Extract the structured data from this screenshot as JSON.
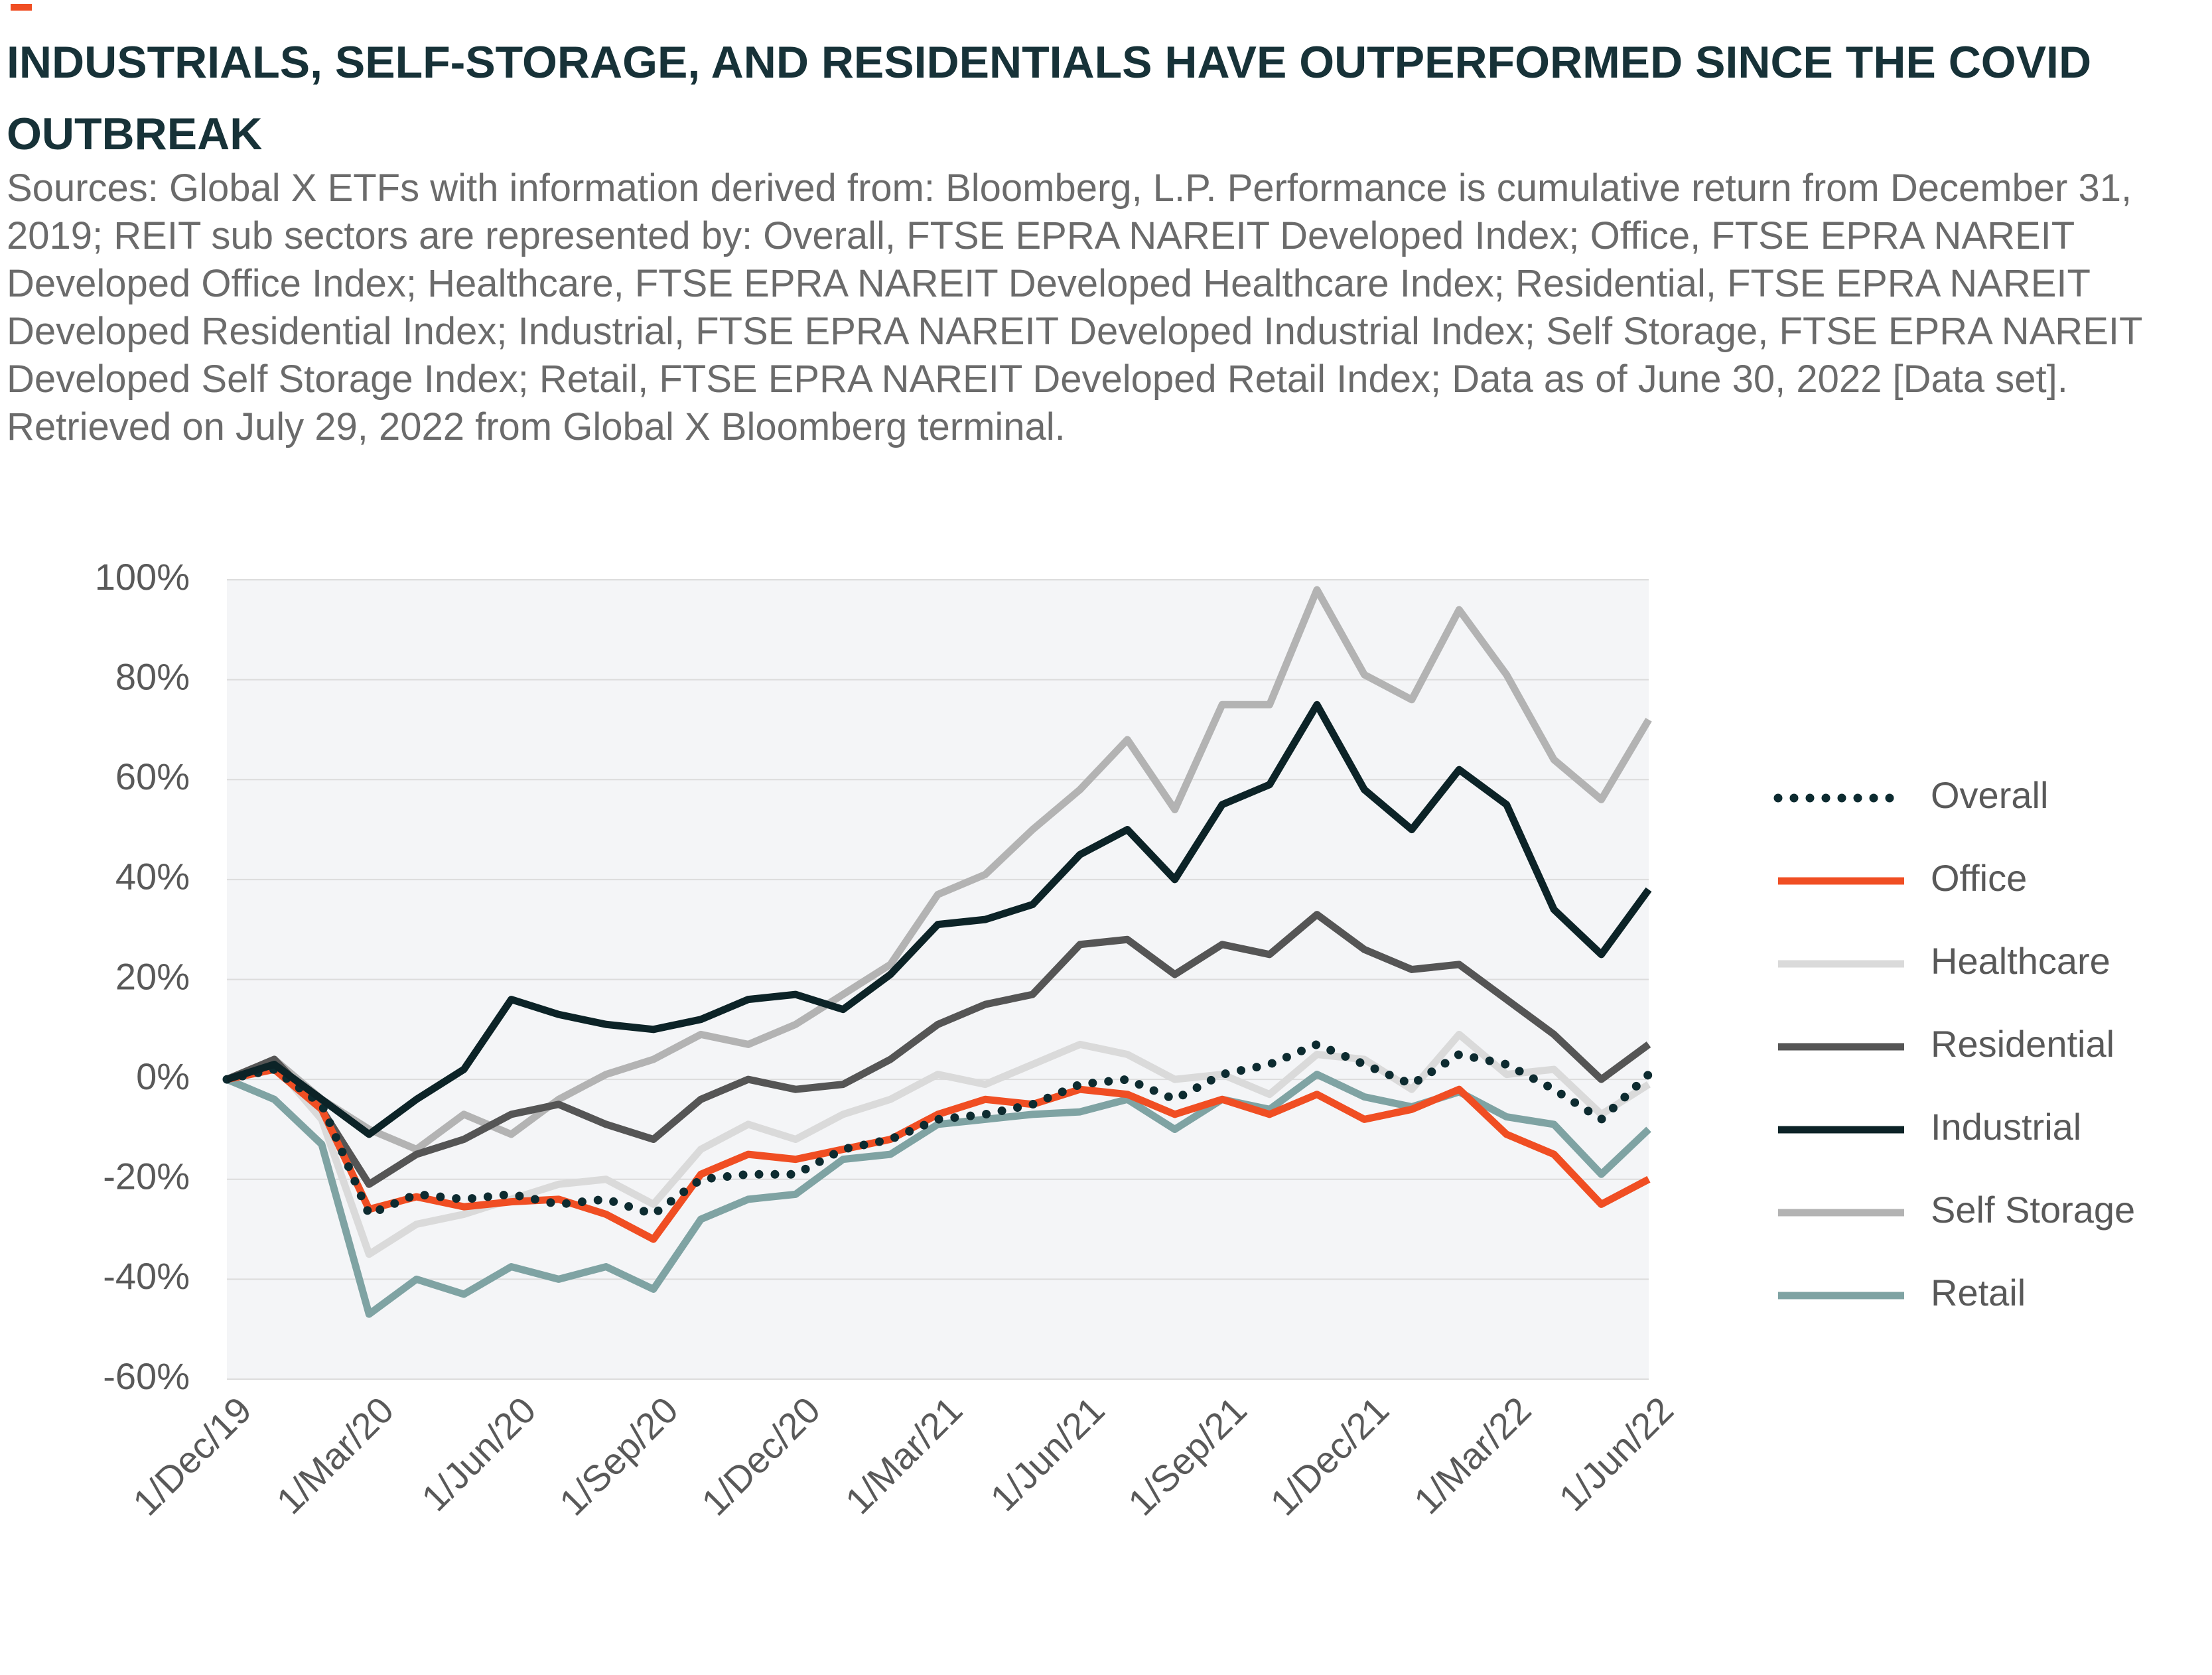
{
  "chart_data": {
    "type": "line",
    "title": "INDUSTRIALS, SELF-STORAGE, AND RESIDENTIALS HAVE OUTPERFORMED SINCE THE COVID OUTBREAK",
    "subtitle": "Sources: Global X ETFs with information derived from: Bloomberg, L.P. Performance is cumulative return from December 31, 2019; REIT sub sectors are represented by: Overall, FTSE EPRA NAREIT Developed Index; Office, FTSE EPRA NAREIT Developed Office Index; Healthcare, FTSE EPRA NAREIT Developed Healthcare Index; Residential, FTSE EPRA NAREIT Developed Residential Index; Industrial, FTSE EPRA NAREIT Developed Industrial Index; Self Storage, FTSE EPRA NAREIT Developed Self Storage Index; Retail, FTSE EPRA NAREIT Developed Retail Index; Data as of June 30, 2022 [Data set]. Retrieved on July 29, 2022 from Global X Bloomberg terminal.",
    "categories": [
      "1/Dec/19",
      null,
      null,
      "1/Mar/20",
      null,
      null,
      "1/Jun/20",
      null,
      null,
      "1/Sep/20",
      null,
      null,
      "1/Dec/20",
      null,
      null,
      "1/Mar/21",
      null,
      null,
      "1/Jun/21",
      null,
      null,
      "1/Sep/21",
      null,
      null,
      "1/Dec/21",
      null,
      null,
      "1/Mar/22",
      null,
      null,
      "1/Jun/22"
    ],
    "series": [
      {
        "name": "Overall",
        "color": "#0d2b30",
        "line_style": "dotted",
        "values": [
          0,
          2,
          -5,
          -27,
          -23,
          -24,
          -23,
          -25,
          -24,
          -27,
          -20,
          -19,
          -19,
          -14,
          -12,
          -8,
          -7,
          -5,
          -1,
          0,
          -4,
          1,
          3,
          7,
          3,
          -1,
          5,
          3,
          -2,
          -8,
          1
        ]
      },
      {
        "name": "Office",
        "color": "#f04e23",
        "values": [
          0,
          2,
          -6,
          -26,
          -23.5,
          -25.5,
          -24.5,
          -24,
          -27,
          -32,
          -19,
          -15,
          -16,
          -14,
          -12,
          -7,
          -4,
          -5,
          -2,
          -3,
          -7,
          -4,
          -7,
          -3,
          -8,
          -6,
          -2,
          -11,
          -15,
          -25,
          -20
        ]
      },
      {
        "name": "Healthcare",
        "color": "#dadada",
        "values": [
          0,
          3,
          -8,
          -35,
          -29,
          -27,
          -24,
          -21,
          -20,
          -25,
          -14,
          -9,
          -12,
          -7,
          -4,
          1,
          -1,
          3,
          7,
          5,
          0,
          1,
          -3,
          5,
          4,
          -2,
          9,
          1,
          2,
          -7,
          -1
        ]
      },
      {
        "name": "Residential",
        "color": "#555555",
        "values": [
          0,
          4,
          -6,
          -21,
          -15,
          -12,
          -7,
          -5,
          -9,
          -12,
          -4,
          0,
          -2,
          -1,
          4,
          11,
          15,
          17,
          27,
          28,
          21,
          27,
          25,
          33,
          26,
          22,
          23,
          16,
          9,
          0,
          7
        ]
      },
      {
        "name": "Industrial",
        "color": "#0c2327",
        "values": [
          0,
          3,
          -4,
          -11,
          -4,
          2,
          16,
          13,
          11,
          10,
          12,
          16,
          17,
          14,
          21,
          31,
          32,
          35,
          45,
          50,
          40,
          55,
          59,
          75,
          58,
          50,
          62,
          55,
          34,
          25,
          38
        ]
      },
      {
        "name": "Self Storage",
        "color": "#b3b3b3",
        "values": [
          0,
          4,
          -4,
          -10,
          -14,
          -7,
          -11,
          -4,
          1,
          4,
          9,
          7,
          11,
          17,
          23,
          37,
          41,
          50,
          58,
          68,
          54,
          75,
          75,
          98,
          81,
          76,
          94,
          81,
          64,
          56,
          72
        ]
      },
      {
        "name": "Retail",
        "color": "#7fa3a3",
        "values": [
          0,
          -4,
          -13,
          -47,
          -40,
          -43,
          -37.5,
          -40,
          -37.5,
          -42,
          -28,
          -24,
          -23,
          -16,
          -15,
          -9,
          -8,
          -7,
          -6.5,
          -4,
          -10,
          -4,
          -6,
          1,
          -3.5,
          -5.5,
          -2.5,
          -7.5,
          -9,
          -19,
          -10
        ]
      }
    ],
    "ylim": [
      -60,
      100
    ],
    "yticks": [
      {
        "value": -60,
        "label": "-60%"
      },
      {
        "value": -40,
        "label": "-40%"
      },
      {
        "value": -20,
        "label": "-20%"
      },
      {
        "value": 0,
        "label": "0%"
      },
      {
        "value": 20,
        "label": "20%"
      },
      {
        "value": 40,
        "label": "40%"
      },
      {
        "value": 60,
        "label": "60%"
      },
      {
        "value": 80,
        "label": "80%"
      },
      {
        "value": 100,
        "label": "100%"
      }
    ],
    "grid": true,
    "legend": "right"
  }
}
